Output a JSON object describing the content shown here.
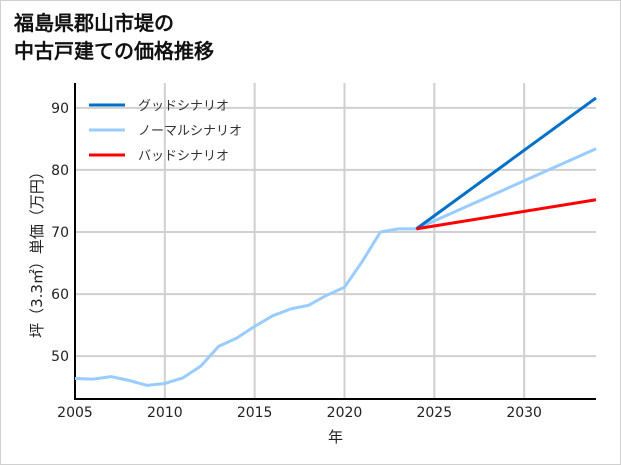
{
  "title_lines": [
    "福島県郡山市堤の",
    "中古戸建ての価格推移"
  ],
  "chart_data": {
    "type": "line",
    "xlabel": "年",
    "ylabel": "坪（3.3㎡）単価（万円）",
    "xlim": [
      2005,
      2034
    ],
    "ylim": [
      43.1,
      94
    ],
    "xticks": [
      2005,
      2010,
      2015,
      2020,
      2025,
      2030
    ],
    "yticks": [
      50,
      60,
      70,
      80,
      90
    ],
    "grid": true,
    "legend_placement": "top-left",
    "series": [
      {
        "name": "グッドシナリオ",
        "color": "#0070c8",
        "x": [
          2024,
          2034
        ],
        "y": [
          70.5,
          91.6
        ]
      },
      {
        "name": "ノーマルシナリオ",
        "color": "#99ccff",
        "x": [
          2005,
          2006,
          2007,
          2008,
          2009,
          2010,
          2011,
          2012,
          2013,
          2014,
          2015,
          2016,
          2017,
          2018,
          2019,
          2020,
          2021,
          2022,
          2023,
          2024,
          2034
        ],
        "y": [
          46.4,
          46.3,
          46.7,
          46.1,
          45.3,
          45.6,
          46.5,
          48.4,
          51.6,
          52.9,
          54.8,
          56.5,
          57.6,
          58.2,
          59.8,
          61.1,
          65.3,
          70.0,
          70.5,
          70.5,
          83.4
        ]
      },
      {
        "name": "バッドシナリオ",
        "color": "#ff0000",
        "x": [
          2024,
          2034
        ],
        "y": [
          70.5,
          75.2
        ]
      }
    ]
  }
}
